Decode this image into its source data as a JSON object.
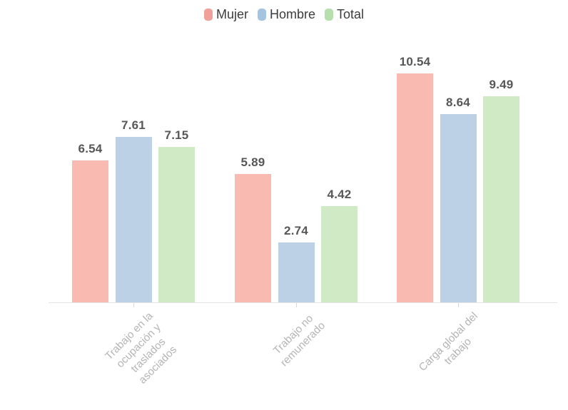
{
  "chart_data": {
    "type": "bar",
    "title": "",
    "categories": [
      "Trabajo en la\nocupación y\ntraslados\nasociados",
      "Trabajo no\nremunerado",
      "Carga global del\ntrabajo"
    ],
    "series": [
      {
        "name": "Mujer",
        "values": [
          6.54,
          5.89,
          10.54
        ],
        "legend_color": "#f0a099",
        "bar_color": "#f9bab2"
      },
      {
        "name": "Hombre",
        "values": [
          7.61,
          2.74,
          8.64
        ],
        "legend_color": "#a5c4e2",
        "bar_color": "#bdd1e6"
      },
      {
        "name": "Total",
        "values": [
          7.15,
          4.42,
          9.49
        ],
        "legend_color": "#b7dfad",
        "bar_color": "#d1eac6"
      }
    ],
    "xlabel": "",
    "ylabel": "",
    "ylim": [
      0,
      11
    ],
    "grid": false,
    "legend_position": "top",
    "value_labels": true,
    "value_label_color": "#575757",
    "category_label_color": "#b4b4b4",
    "axis_line_color": "#e3e3e3"
  }
}
